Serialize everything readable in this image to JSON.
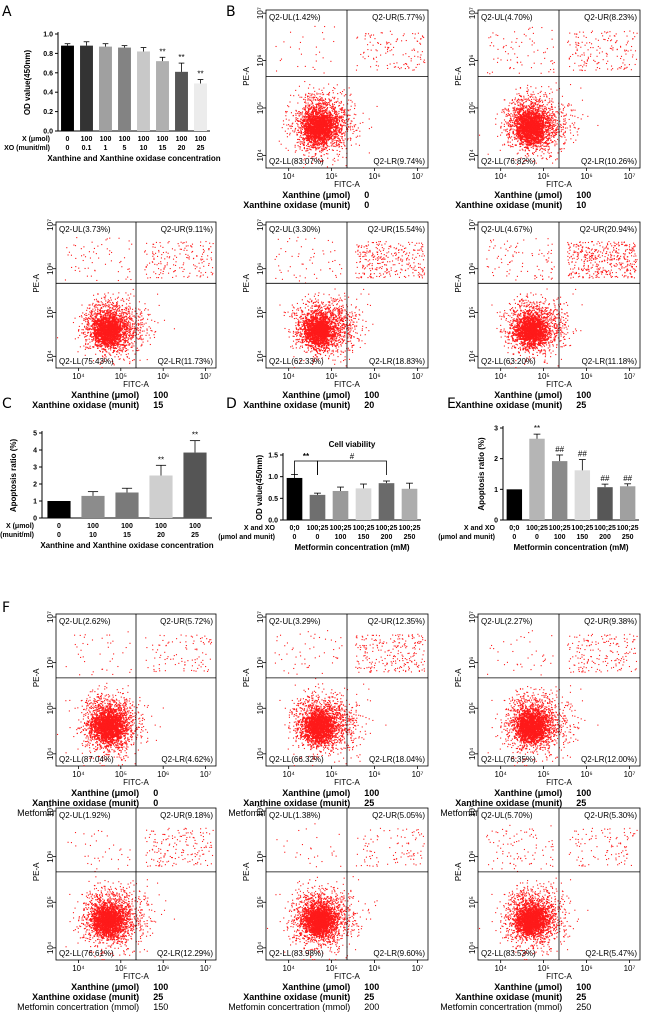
{
  "panel_letters": [
    "A",
    "B",
    "C",
    "D",
    "E",
    "F"
  ],
  "chart_data": [
    {
      "id": "A",
      "type": "bar",
      "ylabel": "OD value(450nm)",
      "xlabel": "Xanthine and Xanthine oxidase concentration",
      "ylim": [
        0,
        1.0
      ],
      "yticks": [
        "0.0",
        "0.2",
        "0.4",
        "0.6",
        "0.8",
        "1.0"
      ],
      "row_labels": [
        "X (μmol)",
        "XO (munit/ml)"
      ],
      "x_row": [
        "0",
        "100",
        "100",
        "100",
        "100",
        "100",
        "100",
        "100"
      ],
      "xo_row": [
        "0",
        "0.1",
        "1",
        "5",
        "10",
        "15",
        "20",
        "25"
      ],
      "values": [
        0.88,
        0.88,
        0.87,
        0.86,
        0.82,
        0.72,
        0.61,
        0.49
      ],
      "errors": [
        0.02,
        0.04,
        0.03,
        0.02,
        0.04,
        0.04,
        0.09,
        0.04
      ],
      "sig": [
        "",
        "",
        "",
        "",
        "",
        "**",
        "**",
        "**"
      ],
      "colors": [
        "#000000",
        "#333333",
        "#a0a0a0",
        "#838383",
        "#c8c8c8",
        "#b0b0b0",
        "#555555",
        "#ececec"
      ]
    },
    {
      "id": "C",
      "type": "bar",
      "ylabel": "Apoptosis ratio (%)",
      "xlabel": "Xanthine and Xanthine oxidase concentration",
      "ylim": [
        0,
        5
      ],
      "yticks": [
        "0",
        "1",
        "2",
        "3",
        "4",
        "5"
      ],
      "row_labels": [
        "X (μmol)",
        "XO (munit/ml)"
      ],
      "x_row": [
        "0",
        "100",
        "100",
        "100",
        "100"
      ],
      "xo_row": [
        "0",
        "10",
        "15",
        "20",
        "25"
      ],
      "values": [
        1.0,
        1.3,
        1.5,
        2.5,
        3.85
      ],
      "errors": [
        0.0,
        0.25,
        0.25,
        0.6,
        0.7
      ],
      "sig": [
        "",
        "",
        "",
        "**",
        "**"
      ],
      "colors": [
        "#000000",
        "#8c8c8c",
        "#7a7a7a",
        "#cfcfcf",
        "#555555"
      ]
    },
    {
      "id": "D",
      "type": "bar",
      "title": "Cell viability",
      "ylabel": "OD value(450nm)",
      "xlabel": "Metformin concentration (mM)",
      "ylim": [
        0,
        1.5
      ],
      "yticks": [
        "0.0",
        "0.5",
        "1.0",
        "1.5"
      ],
      "row_labels": [
        "X and XO",
        "(μmol and munit)"
      ],
      "x_row": [
        "0;0",
        "100;25",
        "100;25",
        "100;25",
        "100;25",
        "100;25"
      ],
      "xo_row": [
        "0",
        "0",
        "100",
        "150",
        "200",
        "250"
      ],
      "values": [
        0.97,
        0.58,
        0.67,
        0.73,
        0.85,
        0.72
      ],
      "errors": [
        0.08,
        0.04,
        0.09,
        0.1,
        0.05,
        0.13
      ],
      "brackets": [
        {
          "from": 0,
          "to": 1,
          "label": "**"
        },
        {
          "from": 1,
          "to": 4,
          "label": "#"
        }
      ],
      "colors": [
        "#000000",
        "#6f6f6f",
        "#9a9a9a",
        "#d7d7d7",
        "#6a6a6a",
        "#adadad"
      ]
    },
    {
      "id": "E",
      "type": "bar",
      "ylabel": "Apoptosis ratio (%)",
      "xlabel": "Metformin concentration (mM)",
      "ylim": [
        0,
        3
      ],
      "yticks": [
        "0",
        "1",
        "2",
        "3"
      ],
      "row_labels": [
        "X and XO",
        "(μmol and munit)"
      ],
      "x_row": [
        "0;0",
        "100;25",
        "100;25",
        "100;25",
        "100;25",
        "100;25"
      ],
      "xo_row": [
        "0",
        "0",
        "100",
        "150",
        "200",
        "250"
      ],
      "values": [
        1.0,
        2.65,
        1.92,
        1.62,
        1.07,
        1.1
      ],
      "errors": [
        0.0,
        0.15,
        0.2,
        0.35,
        0.1,
        0.08
      ],
      "sig": [
        "",
        "**",
        "##",
        "##",
        "##",
        "##"
      ],
      "colors": [
        "#000000",
        "#b5b5b5",
        "#8a8a8a",
        "#dcdcdc",
        "#575757",
        "#a0a0a0"
      ]
    },
    {
      "id": "flow",
      "type": "scatter",
      "xlabel": "FITC-A",
      "ylabel": "PE-A",
      "xticks": [
        "10⁴",
        "10⁵",
        "10⁶",
        "10⁷"
      ],
      "yticks": [
        "10⁷",
        "10⁶",
        "10⁵",
        "10⁴"
      ],
      "plots": [
        {
          "panel": "B",
          "UL": "Q2-UL(1.42%)",
          "UR": "Q2-UR(5.77%)",
          "LL": "Q2-LL(83.07%)",
          "LR": "Q2-LR(9.74%)",
          "caption": [
            [
              "Xanthine (μmol)",
              "0"
            ],
            [
              "Xanthine oxidase (munit)",
              "0"
            ]
          ]
        },
        {
          "panel": "B",
          "UL": "Q2-UL(4.70%)",
          "UR": "Q2-UR(8.23%)",
          "LL": "Q2-LL(76.82%)",
          "LR": "Q2-LR(10.26%)",
          "caption": [
            [
              "Xanthine (μmol)",
              "100"
            ],
            [
              "Xanthine oxidase (munit)",
              "10"
            ]
          ]
        },
        {
          "panel": "B",
          "UL": "Q2-UL(3.73%)",
          "UR": "Q2-UR(9.11%)",
          "LL": "Q2-LL(75.43%)",
          "LR": "Q2-LR(11.73%)",
          "caption": [
            [
              "Xanthine (μmol)",
              "100"
            ],
            [
              "Xanthine oxidase (munit)",
              "15"
            ]
          ]
        },
        {
          "panel": "B",
          "UL": "Q2-UL(3.30%)",
          "UR": "Q2-UR(15.54%)",
          "LL": "Q2-LL(62.33%)",
          "LR": "Q2-LR(18.83%)",
          "caption": [
            [
              "Xanthine (μmol)",
              "100"
            ],
            [
              "Xanthine oxidase (munit)",
              "20"
            ]
          ]
        },
        {
          "panel": "B",
          "UL": "Q2-UL(4.67%)",
          "UR": "Q2-UR(20.94%)",
          "LL": "Q2-LL(63.20%)",
          "LR": "Q2-LR(11.18%)",
          "caption": [
            [
              "Xanthine (μmol)",
              "100"
            ],
            [
              "Xanthine oxidase (munit)",
              "25"
            ]
          ]
        },
        {
          "panel": "F",
          "UL": "Q2-UL(2.62%)",
          "UR": "Q2-UR(5.72%)",
          "LL": "Q2-LL(87.04%)",
          "LR": "Q2-LR(4.62%)",
          "caption": [
            [
              "Xanthine (μmol)",
              "0"
            ],
            [
              "Xanthine oxidase (munit)",
              "0"
            ],
            [
              "Metfomin concertration (mmol)",
              "0"
            ]
          ]
        },
        {
          "panel": "F",
          "UL": "Q2-UL(3.29%)",
          "UR": "Q2-UR(12.35%)",
          "LL": "Q2-LL(66.32%)",
          "LR": "Q2-LR(18.04%)",
          "caption": [
            [
              "Xanthine (μmol)",
              "100"
            ],
            [
              "Xanthine oxidase (munit)",
              "25"
            ],
            [
              "Metfomin concertration (mmol)",
              "0"
            ]
          ]
        },
        {
          "panel": "F",
          "UL": "Q2-UL(2.27%)",
          "UR": "Q2-UR(9.38%)",
          "LL": "Q2-LL(76.35%)",
          "LR": "Q2-LR(12.00%)",
          "caption": [
            [
              "Xanthine (μmol)",
              "100"
            ],
            [
              "Xanthine oxidase (munit)",
              "25"
            ],
            [
              "Metfomin concertration (mmol)",
              "100"
            ]
          ]
        },
        {
          "panel": "F",
          "UL": "Q2-UL(1.92%)",
          "UR": "Q2-UR(9.18%)",
          "LL": "Q2-LL(76.61%)",
          "LR": "Q2-LR(12.29%)",
          "caption": [
            [
              "Xanthine (μmol)",
              "100"
            ],
            [
              "Xanthine oxidase (munit)",
              "25"
            ],
            [
              "Metfomin concertration (mmol)",
              "150"
            ]
          ]
        },
        {
          "panel": "F",
          "UL": "Q2-UL(1.38%)",
          "UR": "Q2-UR(5.05%)",
          "LL": "Q2-LL(83.98%)",
          "LR": "Q2-LR(9.60%)",
          "caption": [
            [
              "Xanthine (μmol)",
              "100"
            ],
            [
              "Xanthine oxidase (munit)",
              "25"
            ],
            [
              "Metfomin concertration (mmol)",
              "200"
            ]
          ]
        },
        {
          "panel": "F",
          "UL": "Q2-UL(5.70%)",
          "UR": "Q2-UR(5.30%)",
          "LL": "Q2-LL(83.53%)",
          "LR": "Q2-LR(5.47%)",
          "caption": [
            [
              "Xanthine (μmol)",
              "100"
            ],
            [
              "Xanthine oxidase (munit)",
              "25"
            ],
            [
              "Metfomin concertration (mmol)",
              "250"
            ]
          ]
        }
      ]
    }
  ]
}
